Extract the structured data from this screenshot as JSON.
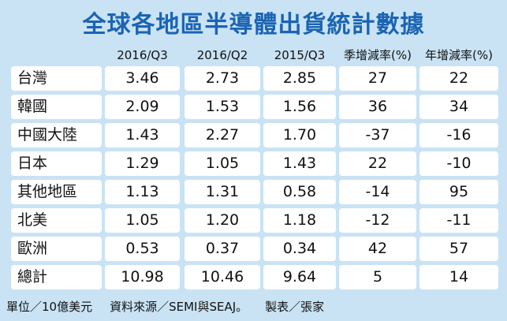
{
  "title": "全球各地區半導體出貨統計數據",
  "table": {
    "header": [
      "2016/Q3",
      "2016/Q2",
      "2015/Q3",
      "季增減率(%)",
      "年增減率(%)"
    ],
    "rows": [
      [
        "台灣",
        "3.46",
        "2.73",
        "2.85",
        "27",
        "22"
      ],
      [
        "韓國",
        "2.09",
        "1.53",
        "1.56",
        "36",
        "34"
      ],
      [
        "中國大陸",
        "1.43",
        "2.27",
        "1.70",
        "-37",
        "-16"
      ],
      [
        "日本",
        "1.29",
        "1.05",
        "1.43",
        "22",
        "-10"
      ],
      [
        "其他地區",
        "1.13",
        "1.31",
        "0.58",
        "-14",
        "95"
      ],
      [
        "北美",
        "1.05",
        "1.20",
        "1.18",
        "-12",
        "-11"
      ],
      [
        "歐洲",
        "0.53",
        "0.37",
        "0.34",
        "42",
        "57"
      ],
      [
        "總計",
        "10.98",
        "10.46",
        "9.64",
        "5",
        "14"
      ]
    ]
  },
  "footer": [
    "單位／10億美元",
    "資料來源／SEMI與SEAJ。",
    "製表／張家"
  ]
}
